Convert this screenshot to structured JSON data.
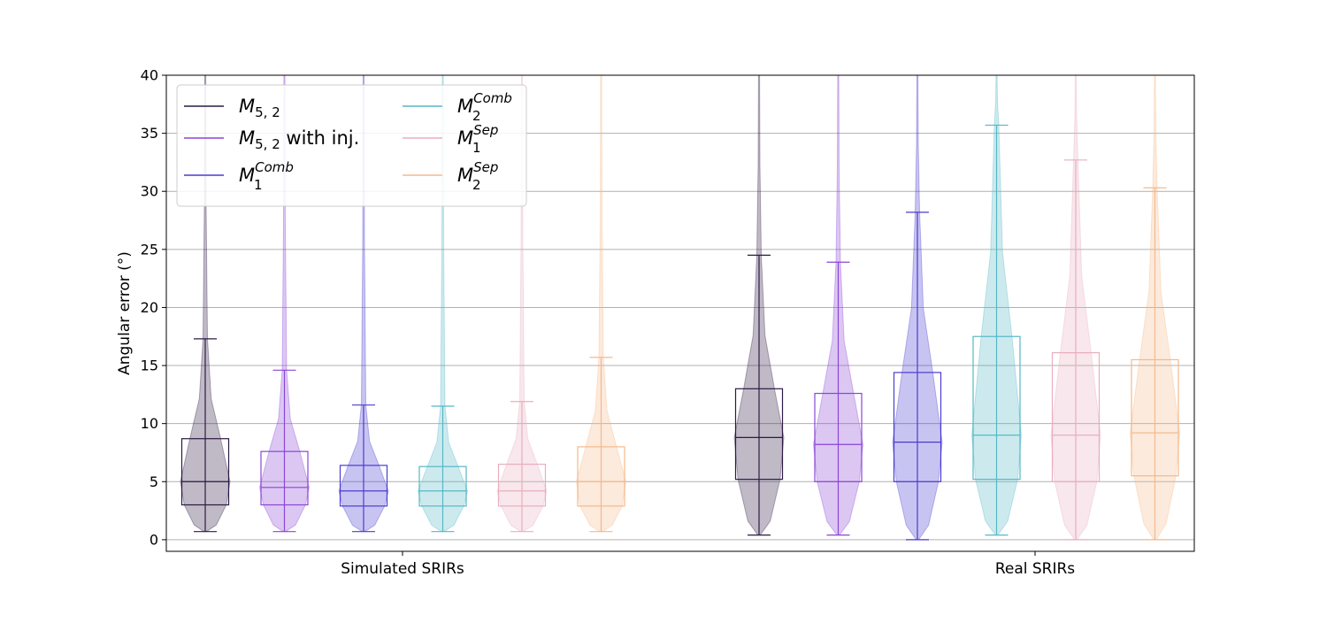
{
  "chart_data": {
    "type": "violin-box",
    "ylabel": "Angular error (°)",
    "ylim": [
      -1,
      40
    ],
    "yticks": [
      0,
      5,
      10,
      15,
      20,
      25,
      30,
      35,
      40
    ],
    "grid": "y",
    "legend_position": "top-left",
    "groups": [
      "Simulated SRIRs",
      "Real SRIRs"
    ],
    "series": [
      {
        "name": "M_{5,2}",
        "color": "#2d1a45",
        "stats": [
          {
            "whisker_low": 0.7,
            "q1": 3.0,
            "median": 5.0,
            "q3": 8.7,
            "whisker_high": 17.3,
            "max": 40
          },
          {
            "whisker_low": 0.4,
            "q1": 5.2,
            "median": 8.8,
            "q3": 13.0,
            "whisker_high": 24.5,
            "max": 40
          }
        ]
      },
      {
        "name": "M_{5,2} with inj.",
        "color": "#8a45d6",
        "stats": [
          {
            "whisker_low": 0.7,
            "q1": 3.0,
            "median": 4.5,
            "q3": 7.6,
            "whisker_high": 14.6,
            "max": 40
          },
          {
            "whisker_low": 0.4,
            "q1": 5.0,
            "median": 8.2,
            "q3": 12.6,
            "whisker_high": 23.9,
            "max": 40
          }
        ]
      },
      {
        "name": "M_1^{Comb}",
        "color": "#4a3cd0",
        "stats": [
          {
            "whisker_low": 0.7,
            "q1": 2.9,
            "median": 4.2,
            "q3": 6.4,
            "whisker_high": 11.6,
            "max": 40
          },
          {
            "whisker_low": 0.0,
            "q1": 5.0,
            "median": 8.4,
            "q3": 14.4,
            "whisker_high": 28.2,
            "max": 40
          }
        ]
      },
      {
        "name": "M_2^{Comb}",
        "color": "#55b8c6",
        "stats": [
          {
            "whisker_low": 0.7,
            "q1": 2.9,
            "median": 4.2,
            "q3": 6.3,
            "whisker_high": 11.5,
            "max": 40
          },
          {
            "whisker_low": 0.4,
            "q1": 5.2,
            "median": 9.0,
            "q3": 17.5,
            "whisker_high": 35.7,
            "max": 40
          }
        ]
      },
      {
        "name": "M_1^{Sep}",
        "color": "#e8aebf",
        "stats": [
          {
            "whisker_low": 0.7,
            "q1": 2.9,
            "median": 4.2,
            "q3": 6.5,
            "whisker_high": 11.9,
            "max": 40
          },
          {
            "whisker_low": 0.0,
            "q1": 5.0,
            "median": 9.0,
            "q3": 16.1,
            "whisker_high": 32.7,
            "max": 40
          }
        ]
      },
      {
        "name": "M_2^{Sep}",
        "color": "#f5b98a",
        "stats": [
          {
            "whisker_low": 0.7,
            "q1": 2.9,
            "median": 5.0,
            "q3": 8.0,
            "whisker_high": 15.7,
            "max": 40
          },
          {
            "whisker_low": 0.0,
            "q1": 5.5,
            "median": 9.2,
            "q3": 15.5,
            "whisker_high": 30.3,
            "max": 40
          }
        ]
      }
    ]
  },
  "legend": {
    "items": [
      {
        "base": "M",
        "sub": "5, 2",
        "sup": "",
        "suffix": ""
      },
      {
        "base": "M",
        "sub": "5, 2",
        "sup": "",
        "suffix": " with inj."
      },
      {
        "base": "M",
        "sub": "1",
        "sup": "Comb",
        "suffix": ""
      },
      {
        "base": "M",
        "sub": "2",
        "sup": "Comb",
        "suffix": ""
      },
      {
        "base": "M",
        "sub": "1",
        "sup": "Sep",
        "suffix": ""
      },
      {
        "base": "M",
        "sub": "2",
        "sup": "Sep",
        "suffix": ""
      }
    ]
  }
}
